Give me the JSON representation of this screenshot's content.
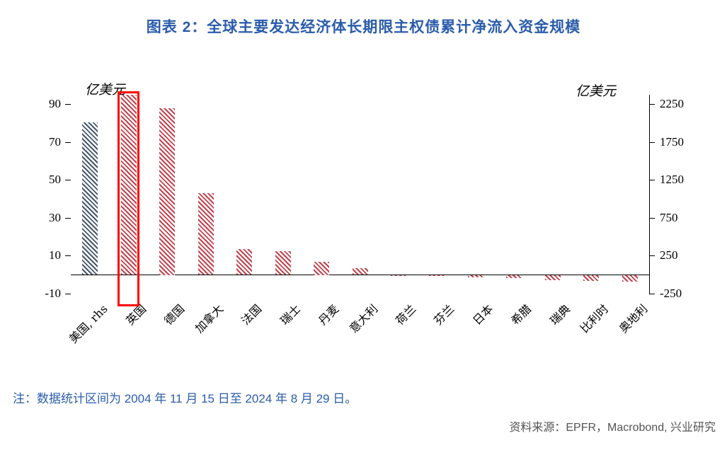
{
  "title": "图表 2：全球主要发达经济体长期限主权债累计净流入资金规模",
  "note": "注：数据统计区间为 2004 年 11 月 15 日至 2024 年 8 月 29 日。",
  "source": "资料来源：EPFR，Macrobond, 兴业研究",
  "colors": {
    "title": "#2b5cab",
    "note": "#2b5cab",
    "source": "#545454",
    "bar_us": "#47586d",
    "bar_others": "#c2424e",
    "highlight": "#ff0000",
    "axis": "#000000"
  },
  "chart_data": {
    "type": "bar",
    "title": "全球主要发达经济体长期限主权债累计净流入资金规模",
    "categories": [
      "美国, rhs",
      "英国",
      "德国",
      "加拿大",
      "法国",
      "瑞士",
      "丹麦",
      "意大利",
      "荷兰",
      "芬兰",
      "日本",
      "希腊",
      "瑞典",
      "比利时",
      "奥地利"
    ],
    "values": [
      2010,
      95,
      88,
      43,
      13.5,
      12.5,
      7,
      3.5,
      -0.5,
      -0.5,
      -1,
      -1.5,
      -2.5,
      -3,
      -3.5
    ],
    "value_axis": [
      "rhs",
      "lhs",
      "lhs",
      "lhs",
      "lhs",
      "lhs",
      "lhs",
      "lhs",
      "lhs",
      "lhs",
      "lhs",
      "lhs",
      "lhs",
      "lhs",
      "lhs"
    ],
    "left_axis": {
      "unit": "亿美元",
      "ticks": [
        90,
        70,
        50,
        30,
        10,
        -10
      ],
      "range": [
        -10,
        95
      ]
    },
    "right_axis": {
      "unit": "亿美元",
      "ticks": [
        2250,
        1750,
        1250,
        750,
        250,
        -250
      ],
      "range": [
        -250,
        2375
      ]
    },
    "rhs_to_lhs_ratio": 25,
    "highlight": {
      "category": "英国"
    },
    "grid": false,
    "legend": false
  }
}
